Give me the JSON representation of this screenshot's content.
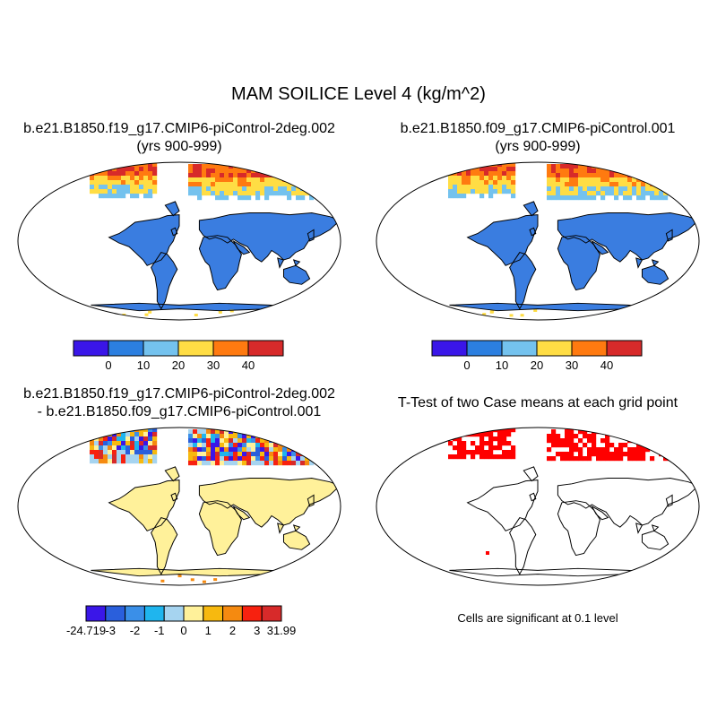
{
  "figure": {
    "title": "MAM SOILICE Level 4 (kg/m^2)"
  },
  "panels": [
    {
      "title_line1": "b.e21.B1850.f19_g17.CMIP6-piControl-2deg.002",
      "title_line2": "(yrs 900-999)"
    },
    {
      "title_line1": "b.e21.B1850.f09_g17.CMIP6-piControl.001",
      "title_line2": "(yrs 900-999)"
    },
    {
      "title_line1": "b.e21.B1850.f19_g17.CMIP6-piControl-2deg.002",
      "title_line2": "- b.e21.B1850.f09_g17.CMIP6-piControl.001"
    },
    {
      "title_line1": "T-Test of two Case means at each grid point",
      "caption": "Cells are significant at 0.1 level"
    }
  ],
  "colorbars": {
    "case": {
      "colors": [
        "#3a16e8",
        "#2c7fe0",
        "#74c2ee",
        "#ffdd44",
        "#ff7a10",
        "#d72a2a"
      ],
      "labels": [
        "0",
        "10",
        "20",
        "30",
        "40"
      ]
    },
    "diff": {
      "colors": [
        "#3a16e8",
        "#2a5fdc",
        "#3a8fe8",
        "#1fb5ee",
        "#a6d4f0",
        "#fff19a",
        "#f7b90f",
        "#f58a10",
        "#f7210f",
        "#d72a2a"
      ],
      "labels": [
        "-24.719",
        "-3",
        "-2",
        "-1",
        "0",
        "1",
        "2",
        "3",
        "31.99"
      ]
    }
  },
  "colors": {
    "land_base_case": "#3a7de0",
    "land_base_diff": "#fff19a",
    "significant": "#ff0000"
  }
}
